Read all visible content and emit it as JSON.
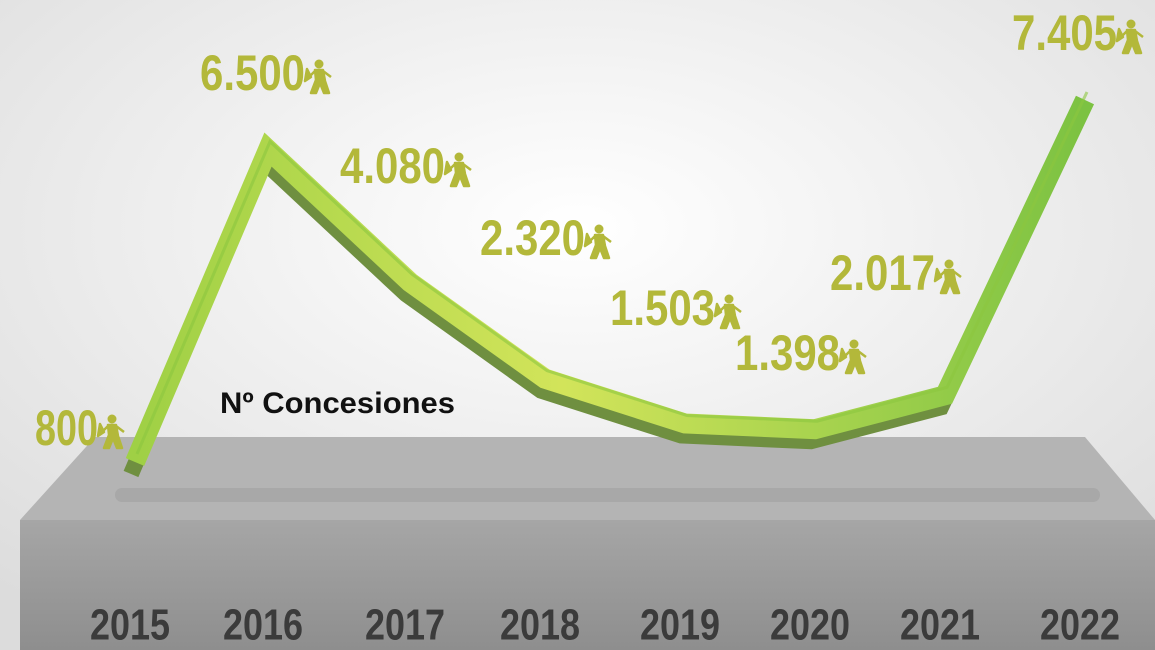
{
  "chart_data": {
    "type": "line",
    "categories": [
      "2015",
      "2016",
      "2017",
      "2018",
      "2019",
      "2020",
      "2021",
      "2022"
    ],
    "series": [
      {
        "name": "Nº Concesiones",
        "color": "#8cc63f",
        "values": [
          800,
          6500,
          4080,
          2320,
          1503,
          1398,
          2017,
          7405
        ],
        "value_labels": [
          "800",
          "6.500",
          "4.080",
          "2.320",
          "1.503",
          "1.398",
          "2.017",
          "7.405"
        ]
      }
    ],
    "label_color": "#b3b83a"
  }
}
